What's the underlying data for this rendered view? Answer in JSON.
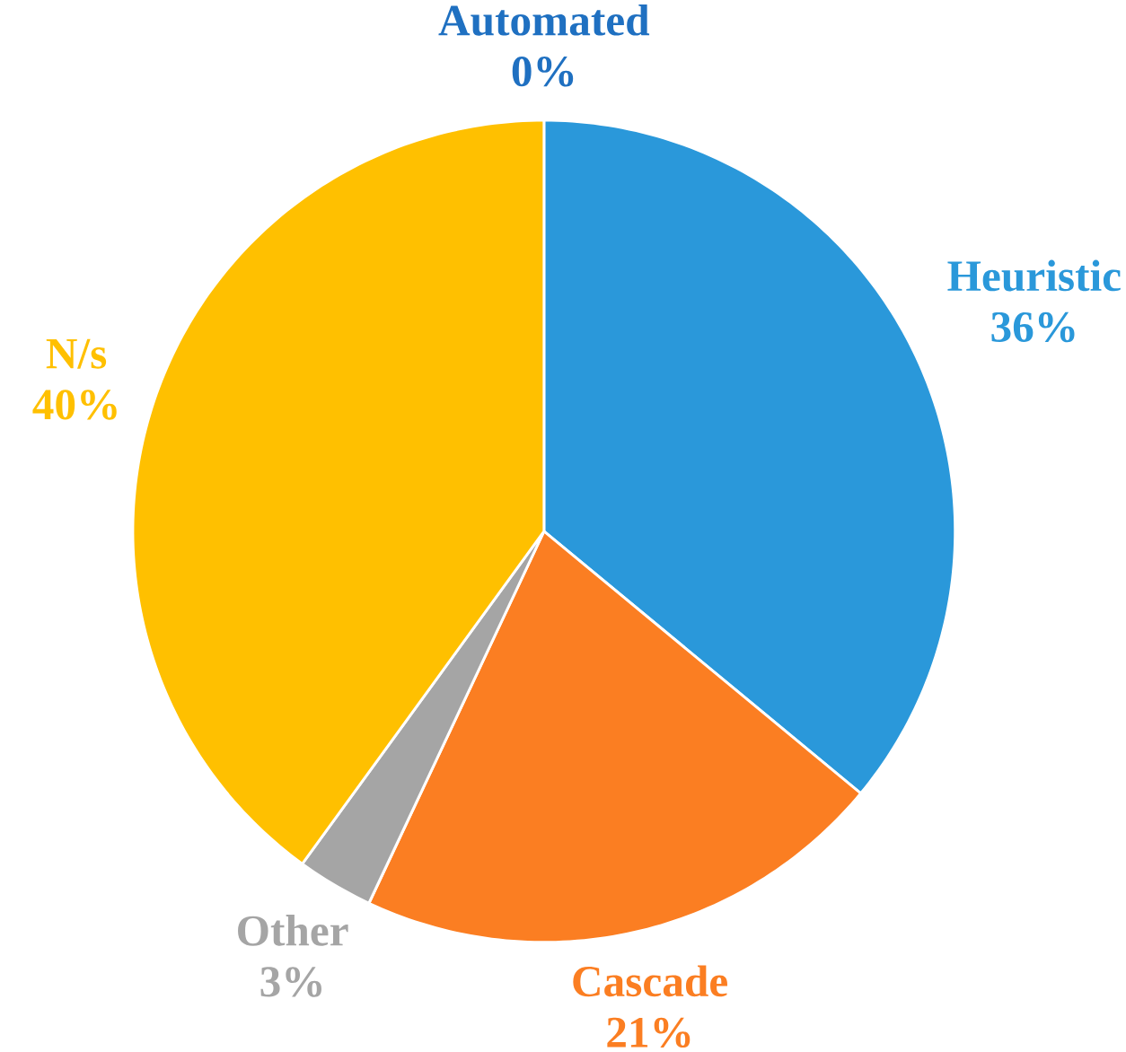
{
  "chart_data": {
    "type": "pie",
    "categories": [
      "Heuristic",
      "Cascade",
      "Other",
      "N/s",
      "Automated"
    ],
    "values": [
      36,
      21,
      3,
      40,
      0
    ],
    "colors": [
      "#2a98da",
      "#fb7e22",
      "#a5a5a5",
      "#ffc000",
      "#1f70c1"
    ],
    "value_labels": [
      "36%",
      "21%",
      "3%",
      "40%",
      "0%"
    ]
  }
}
